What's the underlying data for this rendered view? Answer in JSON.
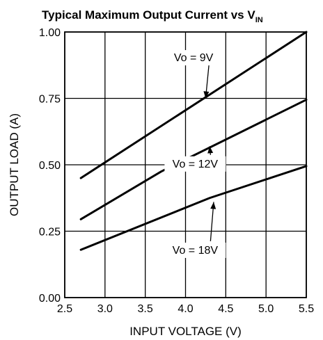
{
  "chart_data": {
    "type": "line",
    "title": "Typical Maximum Output Current vs V",
    "title_subscript": "IN",
    "xlabel": "INPUT VOLTAGE (V)",
    "ylabel": "OUTPUT LOAD (A)",
    "xlim": [
      2.5,
      5.5
    ],
    "ylim": [
      0,
      1.0
    ],
    "xticks": [
      "2.5",
      "3.0",
      "3.5",
      "4.0",
      "4.5",
      "5.0",
      "5.5"
    ],
    "yticks": [
      "0.00",
      "0.25",
      "0.50",
      "0.75",
      "1.00"
    ],
    "grid": true,
    "series": [
      {
        "name": "Vo = 9V",
        "x": [
          2.7,
          5.5
        ],
        "y": [
          0.45,
          1.0
        ],
        "label_at": [
          4.1,
          0.89
        ],
        "arrow_to": [
          4.25,
          0.75
        ]
      },
      {
        "name": "Vo = 12V",
        "x": [
          2.7,
          3.7,
          5.5
        ],
        "y": [
          0.295,
          0.475,
          0.745
        ],
        "label_at": [
          4.12,
          0.49
        ],
        "arrow_to": [
          4.3,
          0.57
        ]
      },
      {
        "name": "Vo = 18V",
        "x": [
          2.7,
          4.3,
          5.5
        ],
        "y": [
          0.18,
          0.375,
          0.495
        ],
        "label_at": [
          4.12,
          0.165
        ],
        "arrow_to": [
          4.35,
          0.36
        ]
      }
    ]
  }
}
